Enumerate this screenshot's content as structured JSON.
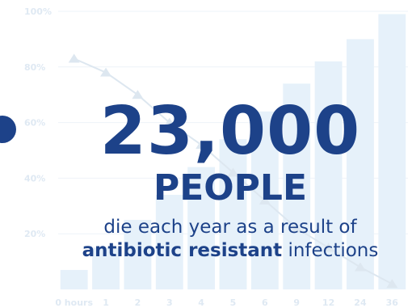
{
  "headline": {
    "number": "23,000",
    "unit": "PEOPLE",
    "line1": "die each year as a result of",
    "line2_bold": "antibiotic resistant",
    "line2_rest": " infections"
  },
  "colors": {
    "headline": "#1d4289",
    "bars": "#e6f1fa",
    "line": "#dde7f0",
    "gridlines": "#eef3f8",
    "ticks": "#dfe9f3"
  },
  "chart_data": {
    "type": "bar",
    "categories": [
      "0 hours",
      "1",
      "2",
      "3",
      "4",
      "5",
      "6",
      "9",
      "12",
      "24",
      "36"
    ],
    "series": [
      {
        "type": "bar",
        "values": [
          7,
          15,
          25,
          34,
          44,
          54,
          64,
          74,
          82,
          90,
          99
        ]
      },
      {
        "type": "line",
        "values": [
          83,
          78,
          70,
          60,
          52,
          42,
          32,
          22,
          15,
          8,
          2
        ]
      }
    ],
    "yticks": [
      "100%",
      "80%",
      "60%",
      "40%",
      "20%"
    ],
    "ytick_values": [
      100,
      80,
      60,
      40,
      20
    ],
    "ylim": [
      0,
      100
    ],
    "grid": true
  }
}
